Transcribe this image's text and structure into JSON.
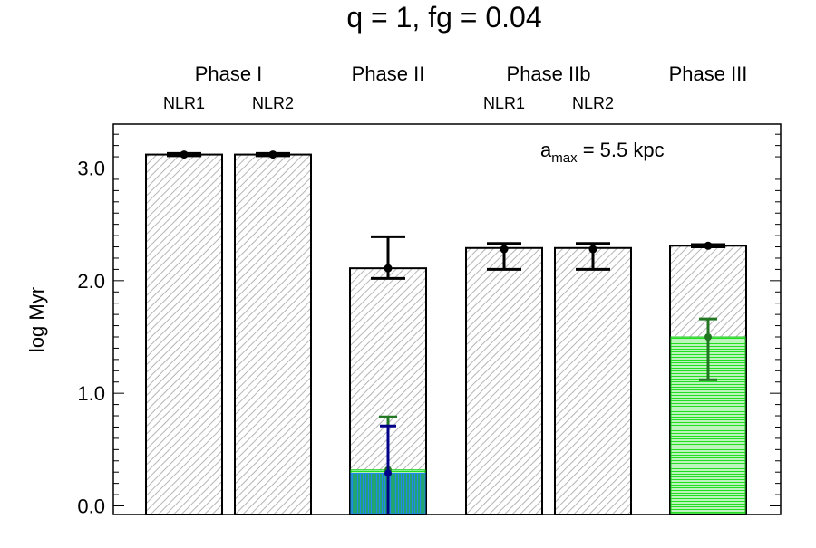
{
  "chart_data": {
    "type": "bar",
    "title": "q = 1, fg = 0.04",
    "ylabel": "log Myr",
    "xlabel": "",
    "ylim": [
      -0.08,
      3.4
    ],
    "yticks": [
      "0.0",
      "1.0",
      "2.0",
      "3.0"
    ],
    "ytick_values": [
      0,
      1,
      2,
      3
    ],
    "annotation": {
      "text": "a",
      "sub": "max",
      "rest": " = 5.5 kpc"
    },
    "phases": [
      {
        "label": "Phase I",
        "bars": [
          0,
          1
        ]
      },
      {
        "label": "Phase II",
        "bars": [
          2
        ]
      },
      {
        "label": "Phase IIb",
        "bars": [
          3,
          4
        ]
      },
      {
        "label": "Phase III",
        "bars": [
          5
        ]
      }
    ],
    "bars": [
      {
        "sublabel": "NLR1",
        "value": 3.12,
        "err_low": 3.11,
        "err_high": 3.13
      },
      {
        "sublabel": "NLR2",
        "value": 3.12,
        "err_low": 3.11,
        "err_high": 3.13
      },
      {
        "sublabel": "",
        "value": 2.11,
        "point": 2.11,
        "err_low": 2.02,
        "err_high": 2.39
      },
      {
        "sublabel": "NLR1",
        "value": 2.29,
        "point": 2.28,
        "err_low": 2.1,
        "err_high": 2.33
      },
      {
        "sublabel": "NLR2",
        "value": 2.29,
        "point": 2.28,
        "err_low": 2.1,
        "err_high": 2.33
      },
      {
        "sublabel": "",
        "value": 2.31,
        "point": 2.31,
        "err_low": 2.3,
        "err_high": 2.32
      }
    ],
    "sub_bars": [
      {
        "bar": 2,
        "series": "green",
        "value": 0.32,
        "point": 0.32,
        "err_low": -0.08,
        "err_high": 0.79
      },
      {
        "bar": 2,
        "series": "blue",
        "value": 0.29,
        "point": 0.29,
        "err_low": -0.08,
        "err_high": 0.71
      },
      {
        "bar": 5,
        "series": "green",
        "value": 1.5,
        "point": 1.5,
        "err_low": 1.12,
        "err_high": 1.66
      }
    ],
    "colors": {
      "green_fill": "#22dd22",
      "green_err": "#227722",
      "blue_fill": "#2299cc",
      "blue_err": "#000088",
      "hatch": "#b0b0b0"
    },
    "grid": false,
    "legend": "none"
  }
}
